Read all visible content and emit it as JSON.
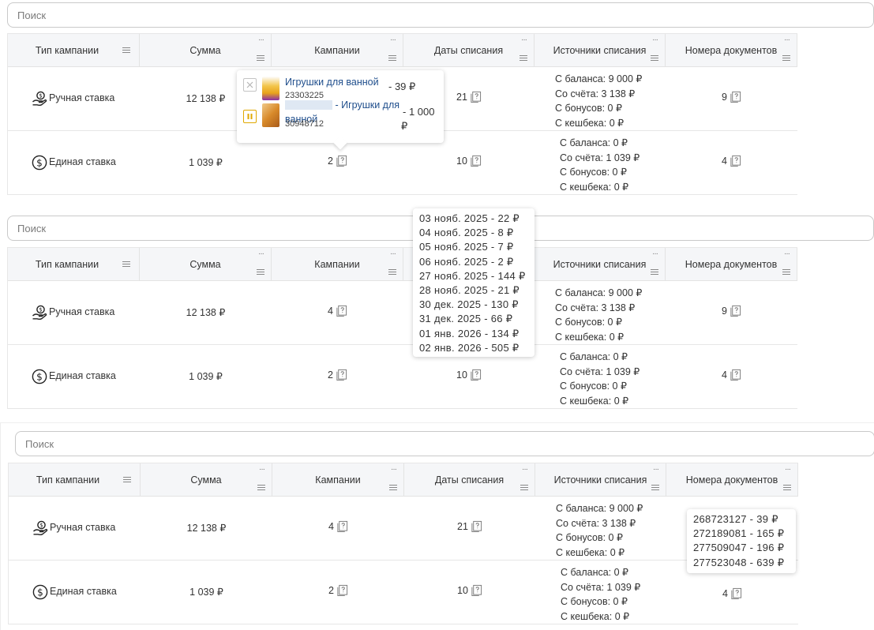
{
  "search": {
    "placeholder": "Поиск"
  },
  "columns": {
    "type": "Тип кампании",
    "sum": "Сумма",
    "campaigns": "Кампании",
    "dates": "Даты списания",
    "sources": "Источники списания",
    "docs": "Номера документов",
    "more": "···"
  },
  "rows": [
    {
      "type": "Ручная ставка",
      "type_icon": "hand-coin-icon",
      "sum": "12 138 ₽",
      "campaigns": "4",
      "dates": "21",
      "docs": "9",
      "sources": [
        "С баланса: 9 000 ₽",
        "Со счёта: 3 138 ₽",
        "С бонусов: 0 ₽",
        "С кешбека: 0 ₽"
      ]
    },
    {
      "type": "Единая ставка",
      "type_icon": "dollar-circle-icon",
      "sum": "1 039 ₽",
      "campaigns": "2",
      "dates": "10",
      "docs": "4",
      "sources": [
        "С баланса: 0 ₽",
        "Со счёта: 1 039 ₽",
        "С бонусов: 0 ₽",
        "С кешбека: 0 ₽"
      ]
    }
  ],
  "campaign_popup": {
    "items": [
      {
        "name": "Игрушки для ванной",
        "id": "23303225",
        "amount": "- 39 ₽",
        "status": "stopped"
      },
      {
        "name_suffix": " - Игрушки для",
        "name_line2": "ванной",
        "id": "30948712",
        "amount": "- 1 000",
        "amount_line2": "₽",
        "status": "paused"
      }
    ]
  },
  "dates_popup": {
    "lines": [
      "03 нояб. 2025 - 22 ₽",
      "04 нояб. 2025 - 8 ₽",
      "05 нояб. 2025 - 7 ₽",
      "06 нояб. 2025 - 2 ₽",
      "27 нояб. 2025 - 144 ₽",
      "28 нояб. 2025 - 21 ₽",
      "30 дек. 2025 - 130 ₽",
      "31 дек. 2025 - 66 ₽",
      "01 янв. 2026 - 134 ₽",
      "02 янв. 2026 - 505 ₽"
    ]
  },
  "docs_popup": {
    "lines": [
      "268723127 - 39 ₽",
      "272189081 - 165 ₽",
      "277509047 - 196 ₽",
      "277523048 - 639 ₽"
    ]
  },
  "colors": {
    "header_bg": "#f5f6f8",
    "link": "#1f4e8c",
    "paused": "#e0a800",
    "stopped": "#b5b5b5"
  }
}
